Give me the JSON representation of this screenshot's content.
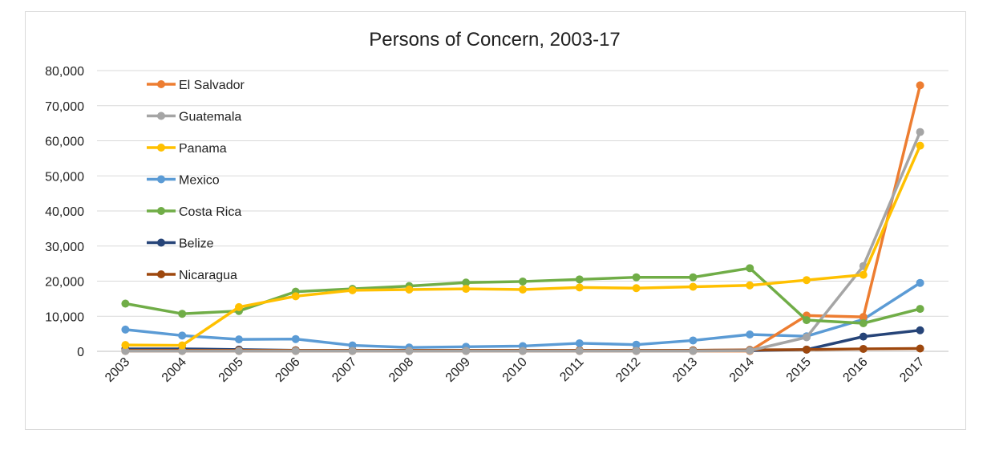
{
  "chart_data": {
    "type": "line",
    "title": "Persons of Concern, 2003-17",
    "xlabel": "",
    "ylabel": "",
    "ylim": [
      0,
      80000
    ],
    "yticks": [
      0,
      10000,
      20000,
      30000,
      40000,
      50000,
      60000,
      70000,
      80000
    ],
    "ytick_labels": [
      "0",
      "10,000",
      "20,000",
      "30,000",
      "40,000",
      "50,000",
      "60,000",
      "70,000",
      "80,000"
    ],
    "grid": true,
    "legend_position": "top-left",
    "categories": [
      "2003",
      "2004",
      "2005",
      "2006",
      "2007",
      "2008",
      "2009",
      "2010",
      "2011",
      "2012",
      "2013",
      "2014",
      "2015",
      "2016",
      "2017"
    ],
    "series": [
      {
        "name": "Belize",
        "color": "#264478",
        "values": [
          700,
          700,
          500,
          300,
          300,
          200,
          200,
          200,
          200,
          200,
          200,
          200,
          500,
          4200,
          6000
        ]
      },
      {
        "name": "Nicaragua",
        "color": "#9e480e",
        "values": [
          300,
          300,
          300,
          300,
          300,
          300,
          300,
          300,
          300,
          300,
          300,
          400,
          500,
          700,
          800
        ]
      },
      {
        "name": "Mexico",
        "color": "#5b9bd5",
        "values": [
          6200,
          4500,
          3400,
          3500,
          1700,
          1100,
          1300,
          1500,
          2300,
          1900,
          3100,
          4800,
          4300,
          9100,
          19500
        ]
      },
      {
        "name": "El Salvador",
        "color": "#ed7d31",
        "values": [
          100,
          100,
          100,
          100,
          100,
          100,
          100,
          100,
          100,
          100,
          100,
          100,
          10200,
          9800,
          75800
        ]
      },
      {
        "name": "Guatemala",
        "color": "#a5a5a5",
        "values": [
          100,
          100,
          100,
          100,
          100,
          100,
          100,
          100,
          100,
          100,
          100,
          200,
          4000,
          24300,
          62500
        ]
      },
      {
        "name": "Costa Rica",
        "color": "#70ad47",
        "values": [
          13600,
          10700,
          11500,
          17000,
          17800,
          18600,
          19600,
          19900,
          20500,
          21100,
          21100,
          23700,
          8900,
          8000,
          12100
        ]
      },
      {
        "name": "Panama",
        "color": "#ffc000",
        "values": [
          1800,
          1700,
          12600,
          15700,
          17400,
          17600,
          17800,
          17600,
          18200,
          18000,
          18400,
          18800,
          20300,
          21800,
          58600
        ]
      }
    ],
    "legend_order": [
      "El Salvador",
      "Guatemala",
      "Panama",
      "Mexico",
      "Costa Rica",
      "Belize",
      "Nicaragua"
    ]
  }
}
